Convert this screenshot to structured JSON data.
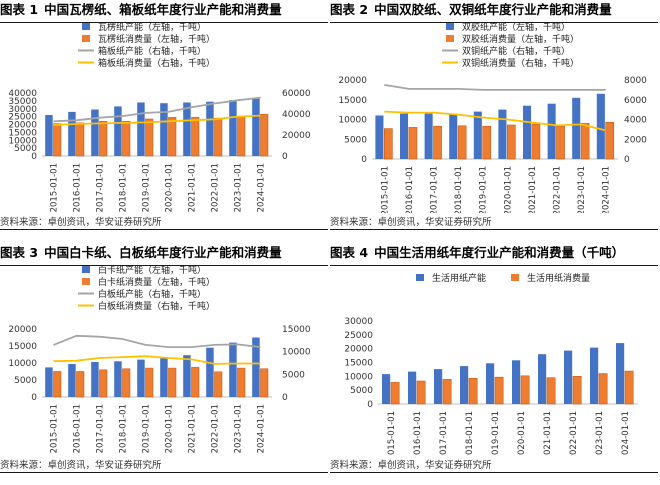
{
  "colors": {
    "blue": "#4472C4",
    "orange": "#ED7D31",
    "gray": "#A5A5A5",
    "yellow": "#FFC000"
  },
  "source": "资料来源：卓创资讯，华安证券研究所",
  "chart_data": [
    {
      "type": "bar",
      "label": "图表 1",
      "title": "中国瓦楞纸、箱板纸年度行业产能和消费量",
      "categories": [
        "2015-01-01",
        "2016-01-01",
        "2017-01-01",
        "2018-01-01",
        "2019-01-01",
        "2020-01-01",
        "2021-01-01",
        "2022-01-01",
        "2023-01-01",
        "2024-01-01"
      ],
      "left_axis": {
        "min": 0,
        "max": 40000,
        "ticks": [
          0,
          5000,
          10000,
          15000,
          20000,
          25000,
          30000,
          35000,
          40000
        ],
        "labels": [
          "0",
          "5000",
          "10000",
          "15000",
          "20000",
          "25000",
          "30000",
          "35000",
          "40000"
        ]
      },
      "right_axis": {
        "min": 0,
        "max": 60000,
        "ticks": [
          0,
          20000,
          40000,
          60000
        ],
        "labels": [
          "0",
          "20000",
          "40000",
          "60000"
        ]
      },
      "series": [
        {
          "name": "瓦楞纸产能（左轴，千吨）",
          "kind": "bar",
          "color": "#4472C4",
          "axis": "left",
          "values": [
            26000,
            28000,
            29500,
            31500,
            34000,
            33500,
            34000,
            34500,
            35500,
            36500
          ]
        },
        {
          "name": "瓦楞纸消费量（左轴，千吨）",
          "kind": "bar",
          "color": "#ED7D31",
          "axis": "left",
          "values": [
            20500,
            21000,
            22000,
            22000,
            23500,
            24500,
            24500,
            24000,
            25000,
            26500
          ]
        },
        {
          "name": "箱板纸产能（右轴，千吨）",
          "kind": "line",
          "color": "#A5A5A5",
          "axis": "right",
          "values": [
            33000,
            34000,
            36500,
            38000,
            41000,
            42000,
            46500,
            50000,
            53000,
            55500
          ]
        },
        {
          "name": "箱板纸消费量（右轴，千吨）",
          "kind": "line",
          "color": "#FFC000",
          "axis": "right",
          "values": [
            29500,
            30500,
            31000,
            31500,
            32000,
            33000,
            34000,
            35000,
            37500,
            38500
          ]
        }
      ]
    },
    {
      "type": "bar",
      "label": "图表 2",
      "title": "中国双胶纸、双铜纸年度行业产能和消费量",
      "categories": [
        "2015-01-01",
        "2016-01-01",
        "2017-01-01",
        "2018-01-01",
        "2019-01-01",
        "2020-01-01",
        "2021-01-01",
        "2022-01-01",
        "2023-01-01",
        "2024-01-01"
      ],
      "left_axis": {
        "min": 0,
        "max": 20000,
        "ticks": [
          0,
          5000,
          10000,
          15000,
          20000
        ],
        "labels": [
          "0",
          "5000",
          "10000",
          "15000",
          "20000"
        ]
      },
      "right_axis": {
        "min": 0,
        "max": 8000,
        "ticks": [
          0,
          2000,
          4000,
          6000,
          8000
        ],
        "labels": [
          "0",
          "2000",
          "4000",
          "6000",
          "8000"
        ]
      },
      "series": [
        {
          "name": "双胶纸产能（左轴，千吨）",
          "kind": "bar",
          "color": "#4472C4",
          "axis": "left",
          "values": [
            11000,
            11500,
            11500,
            11500,
            12000,
            12500,
            13500,
            14000,
            15500,
            16500
          ]
        },
        {
          "name": "双胶纸消费量（左轴，千吨）",
          "kind": "bar",
          "color": "#ED7D31",
          "axis": "left",
          "values": [
            7700,
            8000,
            8300,
            8400,
            8300,
            8600,
            8800,
            8300,
            9000,
            9300
          ]
        },
        {
          "name": "双铜纸产能（右轴，千吨）",
          "kind": "line",
          "color": "#A5A5A5",
          "axis": "right",
          "values": [
            7500,
            7100,
            7100,
            7100,
            7000,
            7000,
            7000,
            7000,
            7000,
            7000
          ]
        },
        {
          "name": "双铜纸消费量（右轴，千吨）",
          "kind": "line",
          "color": "#FFC000",
          "axis": "right",
          "values": [
            4800,
            4700,
            4700,
            4500,
            4200,
            4000,
            3700,
            3400,
            3500,
            2900
          ]
        }
      ]
    },
    {
      "type": "bar",
      "label": "图表 3",
      "title": "中国白卡纸、白板纸年度行业产能和消费量",
      "categories": [
        "2015-01-01",
        "2016-01-01",
        "2017-01-01",
        "2018-01-01",
        "2019-01-01",
        "2020-01-01",
        "2021-01-01",
        "2022-01-01",
        "2023-01-01",
        "2024-01-01"
      ],
      "left_axis": {
        "min": 0,
        "max": 20000,
        "ticks": [
          0,
          5000,
          10000,
          15000,
          20000
        ],
        "labels": [
          "0",
          "5000",
          "10000",
          "15000",
          "20000"
        ]
      },
      "right_axis": {
        "min": 0,
        "max": 15000,
        "ticks": [
          0,
          5000,
          10000,
          15000
        ],
        "labels": [
          "0",
          "5000",
          "10000",
          "15000"
        ]
      },
      "series": [
        {
          "name": "白卡纸产能（左轴，千吨）",
          "kind": "bar",
          "color": "#4472C4",
          "axis": "left",
          "values": [
            8700,
            9700,
            10300,
            10500,
            11000,
            11400,
            12300,
            14500,
            16000,
            17500
          ]
        },
        {
          "name": "白卡纸消费量（左轴，千吨）",
          "kind": "bar",
          "color": "#ED7D31",
          "axis": "left",
          "values": [
            7500,
            7500,
            8000,
            8300,
            8500,
            8500,
            8700,
            7400,
            8500,
            8300
          ]
        },
        {
          "name": "白板纸产能（右轴，千吨）",
          "kind": "line",
          "color": "#A5A5A5",
          "axis": "right",
          "values": [
            11500,
            13500,
            13300,
            12800,
            11500,
            11000,
            11000,
            11500,
            11600,
            11000
          ]
        },
        {
          "name": "白板纸消费量（右轴，千吨）",
          "kind": "line",
          "color": "#FFC000",
          "axis": "right",
          "values": [
            7900,
            8000,
            8600,
            8800,
            9000,
            8600,
            8300,
            7300,
            7400,
            7400
          ]
        }
      ]
    },
    {
      "type": "bar",
      "label": "图表 4",
      "title": "中国生活用纸年度行业产能和消费量（千吨）",
      "categories": [
        "2015-01-01",
        "2016-01-01",
        "2017-01-01",
        "2018-01-01",
        "2019-01-01",
        "2020-01-01",
        "2021-01-01",
        "2022-01-01",
        "2023-01-01",
        "2024-01-01"
      ],
      "left_axis": {
        "min": 0,
        "max": 30000,
        "ticks": [
          0,
          5000,
          10000,
          15000,
          20000,
          25000,
          30000
        ],
        "labels": [
          "0",
          "5000",
          "10000",
          "15000",
          "20000",
          "25000",
          "30000"
        ]
      },
      "series": [
        {
          "name": "生活用纸产能",
          "kind": "bar",
          "color": "#4472C4",
          "axis": "left",
          "values": [
            10800,
            11700,
            12600,
            13700,
            14700,
            15800,
            18000,
            19300,
            20400,
            22000
          ]
        },
        {
          "name": "生活用纸消费量",
          "kind": "bar",
          "color": "#ED7D31",
          "axis": "left",
          "values": [
            7800,
            8300,
            8900,
            9300,
            9700,
            10200,
            9500,
            10000,
            11000,
            11900
          ]
        }
      ]
    }
  ]
}
